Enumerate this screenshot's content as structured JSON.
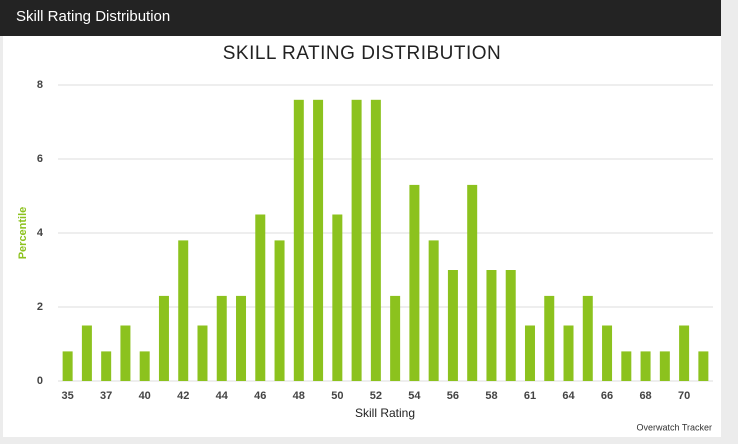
{
  "header": {
    "title": "Skill Rating Distribution"
  },
  "chart_data": {
    "type": "bar",
    "title": "SKILL RATING DISTRIBUTION",
    "x_label": "Skill Rating",
    "y_label": "Percentile",
    "credit": "Overwatch Tracker",
    "categories": [
      "35",
      null,
      "37",
      null,
      "40",
      null,
      "42",
      null,
      "44",
      null,
      "46",
      null,
      "48",
      null,
      "50",
      null,
      "52",
      null,
      "54",
      null,
      "56",
      null,
      "58",
      null,
      "61",
      null,
      "64",
      null,
      "66",
      null,
      "68",
      null,
      "70",
      null
    ],
    "values": [
      0.8,
      1.5,
      0.8,
      1.5,
      0.8,
      2.3,
      3.8,
      1.5,
      2.3,
      2.3,
      4.5,
      3.8,
      7.6,
      7.6,
      4.5,
      7.6,
      7.6,
      2.3,
      5.3,
      3.8,
      3.0,
      5.3,
      3.0,
      3.0,
      1.5,
      2.3,
      1.5,
      2.3,
      1.5,
      0.8,
      0.8,
      0.8,
      1.5,
      0.8
    ],
    "color": "#8cc21e",
    "ylim": [
      0,
      8
    ],
    "yticks": [
      0,
      2,
      4,
      6,
      8
    ],
    "grid": true
  }
}
